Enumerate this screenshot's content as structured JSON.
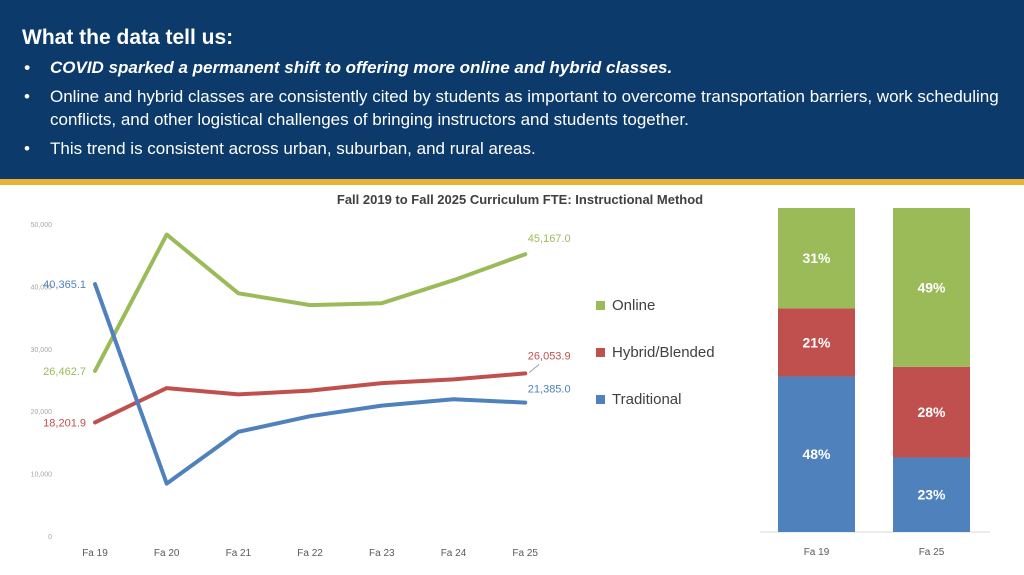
{
  "banner": {
    "heading": "What the data tell us:",
    "bullets": [
      "COVID sparked a permanent shift to offering more online and hybrid classes.",
      "Online and hybrid classes are consistently cited by students as important to overcome transportation barriers, work scheduling conflicts, and other logistical challenges of bringing instructors and students together.",
      "This trend is consistent across urban, suburban, and rural areas."
    ]
  },
  "colors": {
    "banner_bg": "#0b3a6b",
    "accent_stripe": "#e7b13a",
    "online": "#9bbb59",
    "hybrid": "#c0504d",
    "traditional": "#4f81bd"
  },
  "chart_data": [
    {
      "type": "line",
      "title": "Fall 2019 to Fall 2025 Curriculum FTE: Instructional Method",
      "categories": [
        "Fa 19",
        "Fa 20",
        "Fa 21",
        "Fa 22",
        "Fa 23",
        "Fa 24",
        "Fa 25"
      ],
      "ylim": [
        0,
        50000
      ],
      "yticks": [
        "0",
        "10,000",
        "20,000",
        "30,000",
        "40,000",
        "50,000"
      ],
      "grid": false,
      "legend_position": "right",
      "series": [
        {
          "name": "Online",
          "values": [
            26462.7,
            48300,
            38900,
            37000,
            37300,
            41000,
            45167.0
          ],
          "start_label": "26,462.7",
          "end_label": "45,167.0"
        },
        {
          "name": "Hybrid/Blended",
          "values": [
            18201.9,
            23700,
            22700,
            23300,
            24500,
            25100,
            26053.9
          ],
          "start_label": "18,201.9",
          "end_label": "26,053.9"
        },
        {
          "name": "Traditional",
          "values": [
            40365.1,
            8400,
            16700,
            19200,
            20900,
            21900,
            21385.0
          ],
          "start_label": "40,365.1",
          "end_label": "21,385.0"
        }
      ]
    },
    {
      "type": "bar",
      "stacked": "percent",
      "categories": [
        "Fa 19",
        "Fa 25"
      ],
      "series": [
        {
          "name": "Traditional",
          "values": [
            48,
            23
          ],
          "labels": [
            "48%",
            "23%"
          ]
        },
        {
          "name": "Hybrid/Blended",
          "values": [
            21,
            28
          ],
          "labels": [
            "21%",
            "28%"
          ]
        },
        {
          "name": "Online",
          "values": [
            31,
            49
          ],
          "labels": [
            "31%",
            "49%"
          ]
        }
      ]
    }
  ]
}
